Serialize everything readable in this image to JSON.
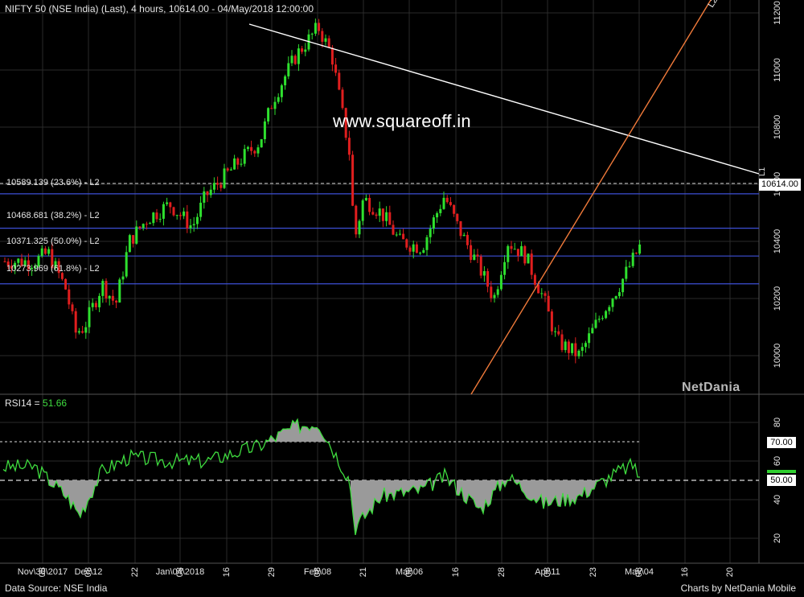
{
  "header": {
    "title": "NIFTY 50 (NSE India) (Last), 4 hours, 10614.00 - 04/May/2018 12:00:00"
  },
  "watermark": "www.squareoff.in",
  "brand": "NetDania",
  "last_price_tag": "10614.00",
  "fib_levels": [
    {
      "label": "10589.139 (23.6%) - L2",
      "value": 10589.139,
      "color": "#3d4fd6",
      "dashed_top": true
    },
    {
      "label": "10468.681 (38.2%) - L2",
      "value": 10468.681,
      "color": "#3d4fd6"
    },
    {
      "label": "10371.325 (50.0%) - L2",
      "value": 10371.325,
      "color": "#3d4fd6"
    },
    {
      "label": "10273.969 (61.8%) - L2",
      "value": 10273.969,
      "color": "#3d4fd6"
    }
  ],
  "trendline_labels": {
    "orange": "L2",
    "white": "L1"
  },
  "rsi": {
    "label": "RSI14 = ",
    "value": "51.66",
    "levels": {
      "upper": "70.00",
      "mid": "50.00"
    },
    "y_ticks": [
      "80",
      "60",
      "40",
      "20"
    ]
  },
  "x_axis": {
    "ticks": [
      {
        "day": "08",
        "month": "Nov\\30\\2017"
      },
      {
        "day": "08",
        "month": "Dec\\12"
      },
      {
        "day": "22",
        "month": ""
      },
      {
        "day": "08",
        "month": "Jan\\04\\2018"
      },
      {
        "day": "16",
        "month": ""
      },
      {
        "day": "29",
        "month": ""
      },
      {
        "day": "08",
        "month": "Feb\\08"
      },
      {
        "day": "21",
        "month": ""
      },
      {
        "day": "08",
        "month": "Mar\\06"
      },
      {
        "day": "16",
        "month": ""
      },
      {
        "day": "28",
        "month": ""
      },
      {
        "day": "08",
        "month": "Apr\\11"
      },
      {
        "day": "23",
        "month": ""
      },
      {
        "day": "08",
        "month": "May\\04"
      },
      {
        "day": "16",
        "month": ""
      },
      {
        "day": "20",
        "month": ""
      }
    ]
  },
  "footer": {
    "left": "Data Source: NSE India",
    "right": "Charts by NetDania Mobile"
  },
  "colors": {
    "up": "#2ee02e",
    "down": "#e01e1e",
    "grid": "#2a2a2a",
    "fib": "#3d4fd6",
    "support": "#f07a3a",
    "resistance": "#ffffff"
  },
  "chart_data": {
    "type": "candlestick",
    "title": "NIFTY 50 (NSE India) (Last), 4 hours, 10614.00 - 04/May/2018 12:00:00",
    "ylim": [
      9900,
      11230
    ],
    "y_ticks": [
      10000,
      10200,
      10400,
      10600,
      10800,
      11000,
      11200
    ],
    "price_path": [
      {
        "date": "2017-11-27",
        "close": 10330
      },
      {
        "date": "2017-11-30",
        "close": 10360
      },
      {
        "date": "2017-12-04",
        "close": 10230
      },
      {
        "date": "2017-12-06",
        "close": 10080
      },
      {
        "date": "2017-12-08",
        "close": 10100
      },
      {
        "date": "2017-12-12",
        "close": 10250
      },
      {
        "date": "2017-12-15",
        "close": 10180
      },
      {
        "date": "2017-12-18",
        "close": 10400
      },
      {
        "date": "2017-12-22",
        "close": 10480
      },
      {
        "date": "2017-12-27",
        "close": 10530
      },
      {
        "date": "2018-01-01",
        "close": 10450
      },
      {
        "date": "2018-01-04",
        "close": 10560
      },
      {
        "date": "2018-01-09",
        "close": 10640
      },
      {
        "date": "2018-01-12",
        "close": 10690
      },
      {
        "date": "2018-01-16",
        "close": 10750
      },
      {
        "date": "2018-01-19",
        "close": 10900
      },
      {
        "date": "2018-01-24",
        "close": 11050
      },
      {
        "date": "2018-01-29",
        "close": 11150
      },
      {
        "date": "2018-02-01",
        "close": 11050
      },
      {
        "date": "2018-02-05",
        "close": 10700
      },
      {
        "date": "2018-02-06",
        "close": 10400
      },
      {
        "date": "2018-02-08",
        "close": 10550
      },
      {
        "date": "2018-02-12",
        "close": 10500
      },
      {
        "date": "2018-02-16",
        "close": 10400
      },
      {
        "date": "2018-02-21",
        "close": 10380
      },
      {
        "date": "2018-02-26",
        "close": 10560
      },
      {
        "date": "2018-03-01",
        "close": 10450
      },
      {
        "date": "2018-03-06",
        "close": 10300
      },
      {
        "date": "2018-03-09",
        "close": 10200
      },
      {
        "date": "2018-03-12",
        "close": 10400
      },
      {
        "date": "2018-03-16",
        "close": 10350
      },
      {
        "date": "2018-03-20",
        "close": 10200
      },
      {
        "date": "2018-03-23",
        "close": 10050
      },
      {
        "date": "2018-03-28",
        "close": 10000
      },
      {
        "date": "2018-04-02",
        "close": 10150
      },
      {
        "date": "2018-04-06",
        "close": 10250
      },
      {
        "date": "2018-04-11",
        "close": 10400
      },
      {
        "date": "2018-04-16",
        "close": 10500
      },
      {
        "date": "2018-04-20",
        "close": 10570
      },
      {
        "date": "2018-04-23",
        "close": 10600
      },
      {
        "date": "2018-04-27",
        "close": 10700
      },
      {
        "date": "2018-04-30",
        "close": 10760
      },
      {
        "date": "2018-05-04",
        "close": 10614
      }
    ],
    "rsi_ylim": [
      10,
      90
    ],
    "rsi_path": [
      {
        "date": "2017-11-27",
        "value": 57
      },
      {
        "date": "2017-12-04",
        "value": 42
      },
      {
        "date": "2017-12-07",
        "value": 32
      },
      {
        "date": "2017-12-12",
        "value": 55
      },
      {
        "date": "2017-12-18",
        "value": 62
      },
      {
        "date": "2017-12-27",
        "value": 60
      },
      {
        "date": "2018-01-04",
        "value": 60
      },
      {
        "date": "2018-01-16",
        "value": 68
      },
      {
        "date": "2018-01-24",
        "value": 78
      },
      {
        "date": "2018-01-29",
        "value": 80
      },
      {
        "date": "2018-02-05",
        "value": 50
      },
      {
        "date": "2018-02-06",
        "value": 25
      },
      {
        "date": "2018-02-12",
        "value": 42
      },
      {
        "date": "2018-02-21",
        "value": 45
      },
      {
        "date": "2018-02-26",
        "value": 52
      },
      {
        "date": "2018-03-06",
        "value": 35
      },
      {
        "date": "2018-03-12",
        "value": 52
      },
      {
        "date": "2018-03-20",
        "value": 38
      },
      {
        "date": "2018-03-28",
        "value": 42
      },
      {
        "date": "2018-04-06",
        "value": 55
      },
      {
        "date": "2018-04-16",
        "value": 65
      },
      {
        "date": "2018-04-27",
        "value": 68
      },
      {
        "date": "2018-04-30",
        "value": 74
      },
      {
        "date": "2018-05-04",
        "value": 51.66
      }
    ]
  }
}
